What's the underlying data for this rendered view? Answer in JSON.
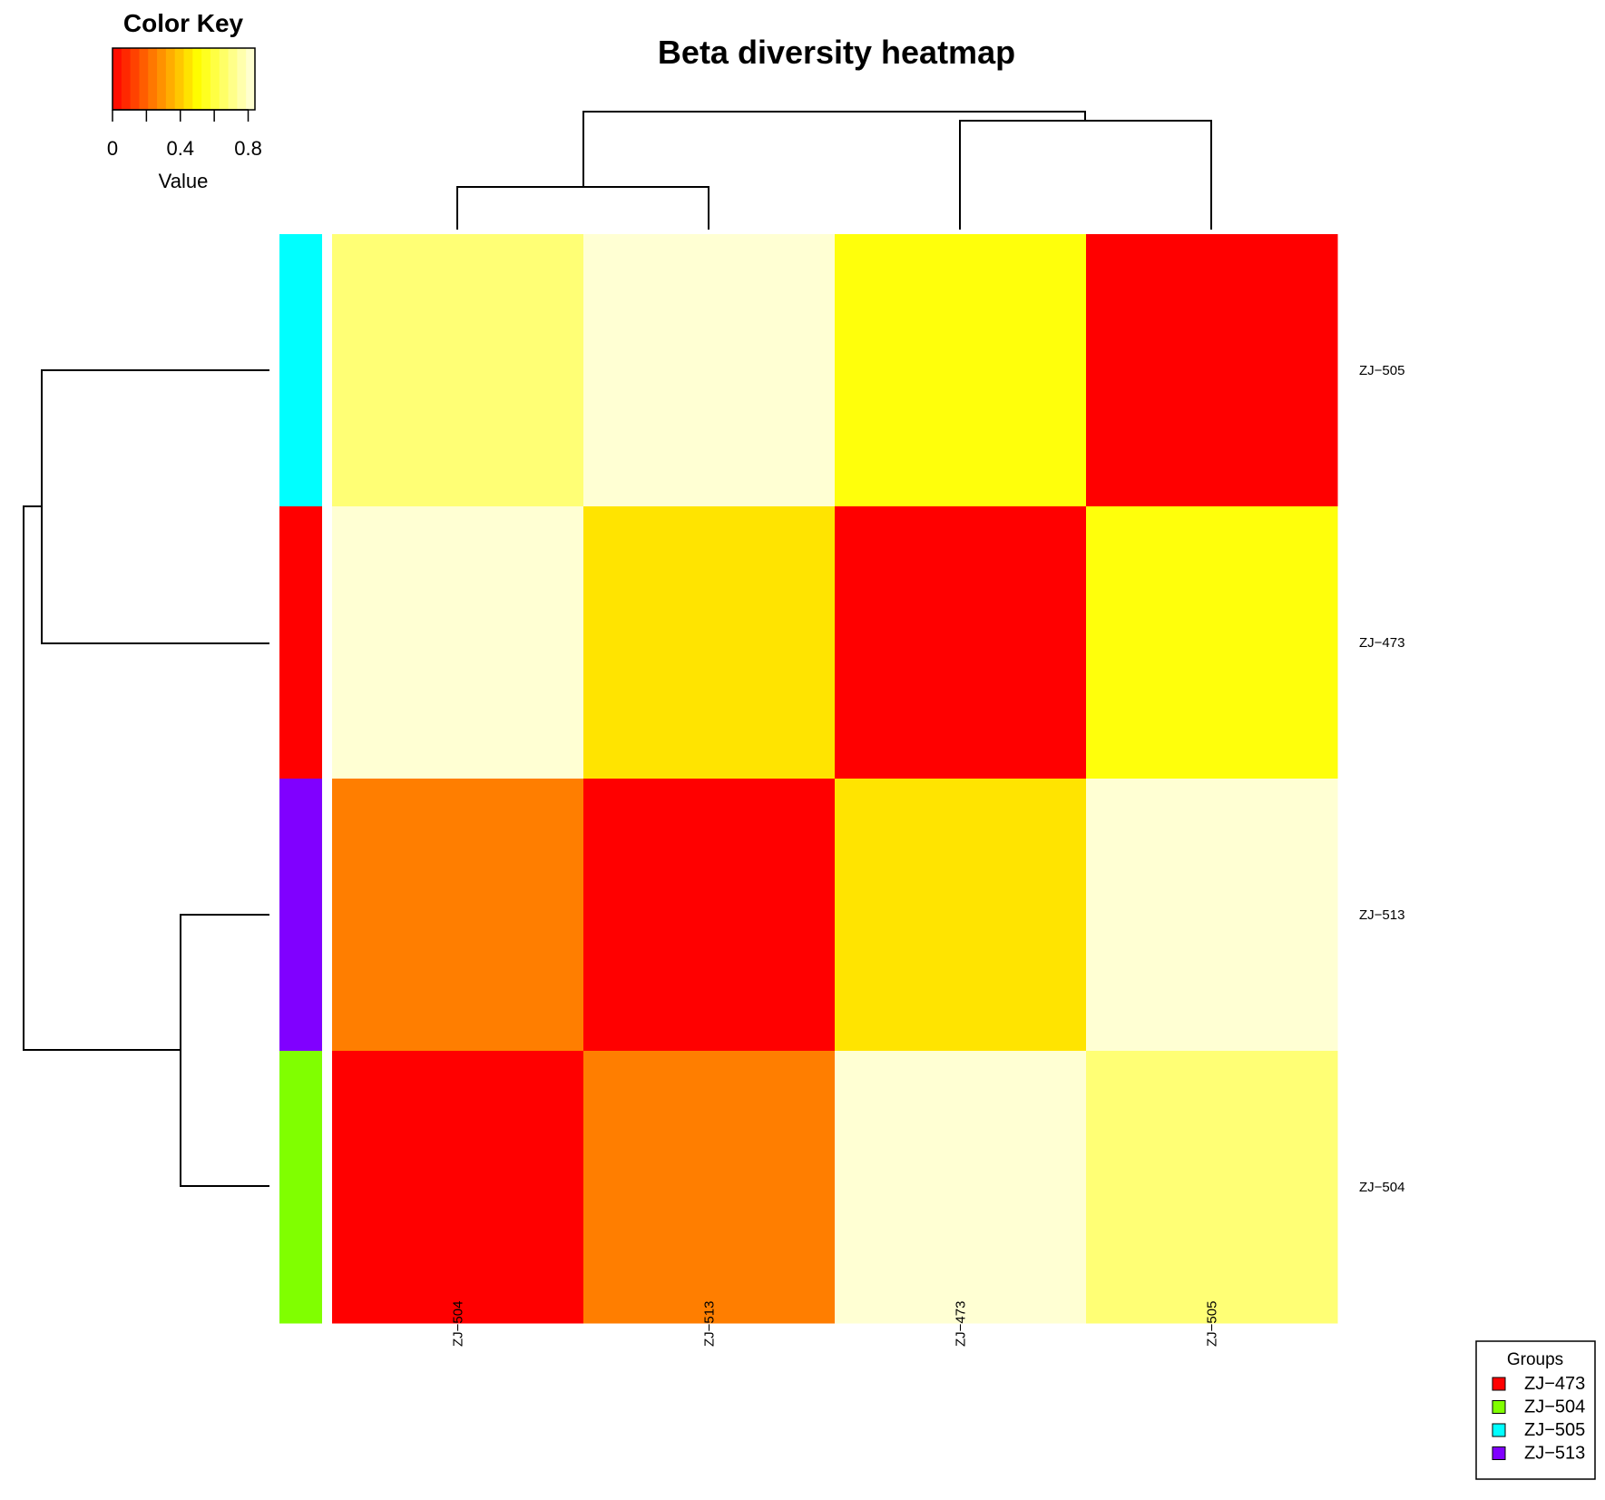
{
  "chart_data": {
    "type": "heatmap",
    "title": "Beta diversity heatmap",
    "columns": [
      "ZJ-504",
      "ZJ-513",
      "ZJ-473",
      "ZJ-505"
    ],
    "rows": [
      "ZJ-505",
      "ZJ-473",
      "ZJ-513",
      "ZJ-504"
    ],
    "values": [
      [
        0.68,
        0.82,
        0.52,
        0.0
      ],
      [
        0.82,
        0.45,
        0.0,
        0.52
      ],
      [
        0.25,
        0.0,
        0.45,
        0.82
      ],
      [
        0.0,
        0.25,
        0.82,
        0.68
      ]
    ],
    "row_groups": [
      "ZJ-505",
      "ZJ-473",
      "ZJ-513",
      "ZJ-504"
    ],
    "color_key": {
      "title": "Color Key",
      "label": "Value",
      "ticks": [
        0,
        0.4,
        0.8
      ],
      "tick_labels": [
        "0",
        "0.4",
        "0.8"
      ],
      "range": [
        0,
        0.84
      ],
      "low_color": "#ff0000",
      "mid_color": "#ffff00",
      "high_color": "#ffffe0"
    },
    "legend": {
      "title": "Groups",
      "position": "bottom-right",
      "items": [
        {
          "label": "ZJ−473",
          "color": "#ff0000"
        },
        {
          "label": "ZJ−504",
          "color": "#80ff00"
        },
        {
          "label": "ZJ−505",
          "color": "#00ffff"
        },
        {
          "label": "ZJ−513",
          "color": "#8000ff"
        }
      ]
    },
    "row_dendrogram": true,
    "column_dendrogram": true
  }
}
